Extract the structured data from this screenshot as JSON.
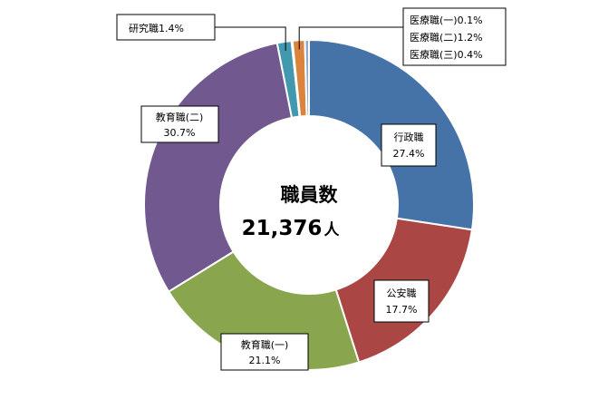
{
  "chart_data": {
    "type": "pie",
    "donut": true,
    "center": {
      "title": "職員数",
      "value": "21,376",
      "unit": "人"
    },
    "slices": [
      {
        "name": "行政職",
        "value": 27.4,
        "value_label": "27.4%",
        "color": "#4572A7"
      },
      {
        "name": "公安職",
        "value": 17.7,
        "value_label": "17.7%",
        "color": "#AA4643"
      },
      {
        "name": "教育職(一)",
        "value": 21.1,
        "value_label": "21.1%",
        "color": "#89A54E"
      },
      {
        "name": "教育職(二)",
        "value": 30.7,
        "value_label": "30.7%",
        "color": "#71588F"
      },
      {
        "name": "研究職",
        "value": 1.4,
        "value_label": "1.4%",
        "color": "#4198AF"
      },
      {
        "name": "医療職(一)",
        "value": 0.1,
        "value_label": "0.1%",
        "color": "#4572A7"
      },
      {
        "name": "医療職(二)",
        "value": 1.2,
        "value_label": "1.2%",
        "color": "#DB843D"
      },
      {
        "name": "医療職(三)",
        "value": 0.4,
        "value_label": "0.4%",
        "color": "#93A9CF"
      }
    ]
  }
}
